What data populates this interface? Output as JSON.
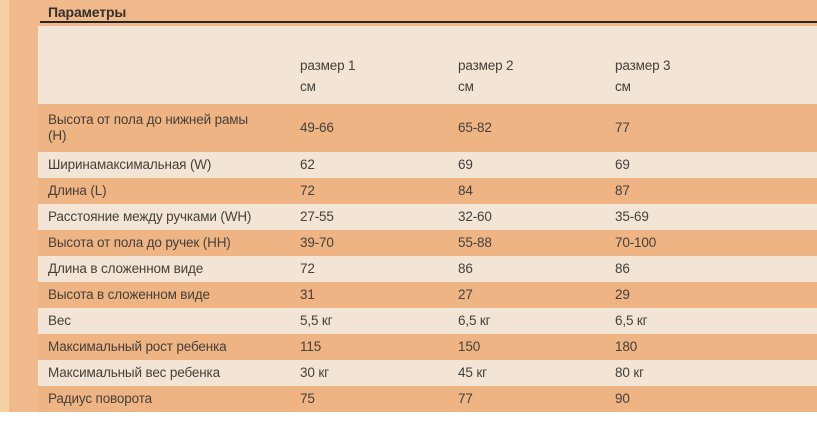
{
  "title": "Параметры",
  "table": {
    "header": {
      "col1": {
        "line1": "размер 1",
        "line2": "см"
      },
      "col2": {
        "line1": "размер 2",
        "line2": "см"
      },
      "col3": {
        "line1": "размер 3",
        "line2": "см"
      }
    },
    "rows": [
      {
        "label": "Высота от пола до нижней рамы (H)",
        "size1": "49-66",
        "size2": "65-82",
        "size3": "77"
      },
      {
        "label": "Ширинамаксимальная (W)",
        "size1": "62",
        "size2": "69",
        "size3": "69"
      },
      {
        "label": "Длина (L)",
        "size1": "72",
        "size2": "84",
        "size3": "87"
      },
      {
        "label": "Расстояние между ручками (WH)",
        "size1": "27-55",
        "size2": "32-60",
        "size3": "35-69"
      },
      {
        "label": "Высота от пола до ручек (HH)",
        "size1": "39-70",
        "size2": "55-88",
        "size3": "70-100"
      },
      {
        "label": "Длина в сложенном виде",
        "size1": "72",
        "size2": "86",
        "size3": "86"
      },
      {
        "label": "Высота в сложенном виде",
        "size1": "31",
        "size2": "27",
        "size3": "29"
      },
      {
        "label": "Вес",
        "size1": "5,5 кг",
        "size2": "6,5 кг",
        "size3": "6,5 кг"
      },
      {
        "label": "Максимальный рост ребенка",
        "size1": "115",
        "size2": "150",
        "size3": "180"
      },
      {
        "label": "Максимальный вес ребенка",
        "size1": "30 кг",
        "size2": "45 кг",
        "size3": "80 кг"
      },
      {
        "label": "Радиус поворота",
        "size1": "75",
        "size2": "77",
        "size3": "90"
      }
    ]
  },
  "colors": {
    "page_orange": "#f0ba8c",
    "row_orange": "#eeb484",
    "cream": "#f2e5d5",
    "strip": "#f4d0a5",
    "text": "#46403a",
    "title_text": "#35302b",
    "rule": "#262424",
    "bottom_white": "#ffffff"
  }
}
